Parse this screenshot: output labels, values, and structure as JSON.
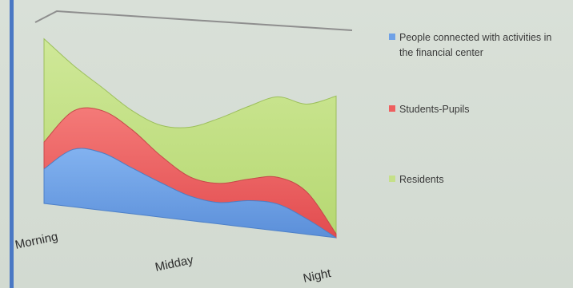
{
  "chart_data": {
    "type": "area",
    "stacked": true,
    "categories": [
      "Morning",
      "Midday",
      "Night"
    ],
    "x": [
      0,
      0.1,
      0.2,
      0.3,
      0.4,
      0.5,
      0.6,
      0.7,
      0.8,
      0.9,
      1.0
    ],
    "series": [
      {
        "name": "People connected with activities in the financial center",
        "color": "#6fa1e6",
        "values": [
          4.5,
          7.5,
          7.5,
          6.0,
          4.5,
          3.2,
          2.8,
          3.5,
          3.5,
          2.0,
          0.0
        ]
      },
      {
        "name": "Students-Pupils",
        "color": "#ee5f5f",
        "values": [
          3.5,
          5.0,
          5.5,
          5.0,
          3.5,
          2.5,
          2.5,
          2.8,
          3.5,
          3.5,
          0.5
        ]
      },
      {
        "name": "Residents",
        "color": "#c5e089",
        "values": [
          13.5,
          6.0,
          3.0,
          2.5,
          4.0,
          6.5,
          8.5,
          9.5,
          10.5,
          11.5,
          18.0
        ]
      }
    ],
    "title": "",
    "xlabel": "",
    "ylabel": "",
    "legend_position": "right",
    "grid": false,
    "three_d": true
  }
}
